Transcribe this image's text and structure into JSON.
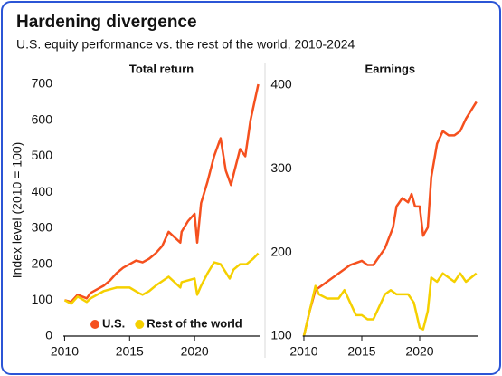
{
  "title": "Hardening divergence",
  "subtitle": "U.S. equity performance vs. the rest of the world, 2010-2024",
  "chart_data": [
    {
      "type": "line",
      "title": "Total return",
      "y_label": "Index level (2010 = 100)",
      "xlim": [
        2009.9,
        2025
      ],
      "xticks": [
        2010,
        2015,
        2020
      ],
      "ylim": [
        0,
        700
      ],
      "yticks": [
        0,
        100,
        200,
        300,
        400,
        500,
        600,
        700
      ],
      "legend": "bottom-left",
      "series": [
        {
          "name": "U.S.",
          "color": "#f5501e",
          "x": [
            2010,
            2010.5,
            2011,
            2011.7,
            2012,
            2013,
            2013.5,
            2014,
            2014.5,
            2015,
            2015.5,
            2016,
            2016.5,
            2017,
            2017.5,
            2018,
            2018.9,
            2019,
            2019.5,
            2020,
            2020.2,
            2020.5,
            2021,
            2021.5,
            2022,
            2022.4,
            2022.8,
            2023,
            2023.5,
            2023.9,
            2024.3,
            2024.6,
            2024.9
          ],
          "values": [
            100,
            95,
            115,
            105,
            120,
            140,
            155,
            175,
            190,
            200,
            210,
            205,
            215,
            230,
            250,
            290,
            260,
            290,
            320,
            340,
            260,
            370,
            430,
            500,
            550,
            460,
            420,
            450,
            520,
            500,
            600,
            650,
            700
          ]
        },
        {
          "name": "Rest of the world",
          "color": "#f5d000",
          "x": [
            2010,
            2010.5,
            2011,
            2011.7,
            2012,
            2013,
            2014,
            2015,
            2015.7,
            2016,
            2016.5,
            2017,
            2018,
            2018.9,
            2019,
            2020,
            2020.2,
            2020.5,
            2021,
            2021.5,
            2022,
            2022.7,
            2023,
            2023.5,
            2024,
            2024.5,
            2024.9
          ],
          "values": [
            100,
            90,
            110,
            95,
            105,
            125,
            135,
            135,
            120,
            115,
            125,
            140,
            165,
            135,
            150,
            160,
            115,
            140,
            175,
            205,
            200,
            160,
            185,
            200,
            200,
            215,
            230
          ]
        }
      ]
    },
    {
      "type": "line",
      "title": "Earnings",
      "xlim": [
        2009.9,
        2025
      ],
      "xticks": [
        2010,
        2015,
        2020
      ],
      "ylim": [
        100,
        400
      ],
      "yticks": [
        100,
        200,
        300,
        400
      ],
      "series": [
        {
          "color": "#f5501e",
          "x": [
            2010,
            2010.5,
            2011,
            2012,
            2013,
            2014,
            2015,
            2015.5,
            2016,
            2016.5,
            2017,
            2017.7,
            2018,
            2018.5,
            2019,
            2019.3,
            2019.6,
            2020,
            2020.3,
            2020.7,
            2021,
            2021.5,
            2022,
            2022.5,
            2023,
            2023.5,
            2024,
            2024.9
          ],
          "values": [
            100,
            130,
            155,
            165,
            175,
            185,
            190,
            185,
            185,
            195,
            205,
            230,
            255,
            265,
            260,
            270,
            255,
            255,
            220,
            230,
            290,
            330,
            345,
            340,
            340,
            345,
            360,
            380
          ]
        },
        {
          "color": "#f5d000",
          "x": [
            2010,
            2010.5,
            2011,
            2011.3,
            2012,
            2013,
            2013.5,
            2014,
            2014.5,
            2015,
            2015.5,
            2016,
            2016.5,
            2017,
            2017.5,
            2018,
            2019,
            2019.5,
            2020,
            2020.3,
            2020.7,
            2021,
            2021.5,
            2022,
            2022.5,
            2023,
            2023.5,
            2024,
            2024.9
          ],
          "values": [
            100,
            130,
            160,
            150,
            145,
            145,
            155,
            140,
            125,
            125,
            120,
            120,
            135,
            150,
            155,
            150,
            150,
            140,
            110,
            108,
            130,
            170,
            165,
            175,
            170,
            165,
            175,
            165,
            175
          ]
        }
      ]
    }
  ]
}
